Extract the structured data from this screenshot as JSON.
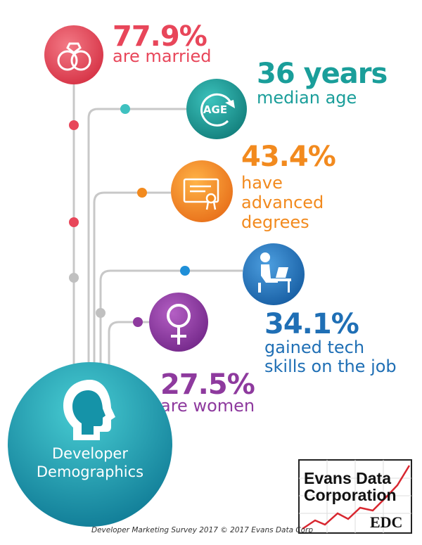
{
  "stats": [
    {
      "value": "77.9%",
      "desc": [
        "are married"
      ],
      "icon": "wedding-rings-icon",
      "color": "#e8465a"
    },
    {
      "value": "36 years",
      "desc": [
        "median age"
      ],
      "icon": "age-cycle-icon",
      "icon_label": "AGE",
      "color": "#1a9e9a"
    },
    {
      "value": "43.4%",
      "desc": [
        "have",
        "advanced",
        "degrees"
      ],
      "icon": "certificate-icon",
      "color": "#f28a1e"
    },
    {
      "value": "34.1%",
      "desc": [
        "gained tech",
        "skills on the job"
      ],
      "icon": "person-at-desk-icon",
      "color": "#1f6fb5"
    },
    {
      "value": "27.5%",
      "desc": [
        "are women"
      ],
      "icon": "female-symbol-icon",
      "color": "#8e3a9e"
    }
  ],
  "hub": {
    "lines": [
      "Developer",
      "Demographics"
    ],
    "icon": "head-silhouette-icon",
    "color": "#1593a8"
  },
  "logo": {
    "lines": [
      "Evans Data",
      "Corporation"
    ],
    "abbr": "EDC"
  },
  "footer": "Developer Marketing Survey 2017 © 2017 Evans Data Corp"
}
